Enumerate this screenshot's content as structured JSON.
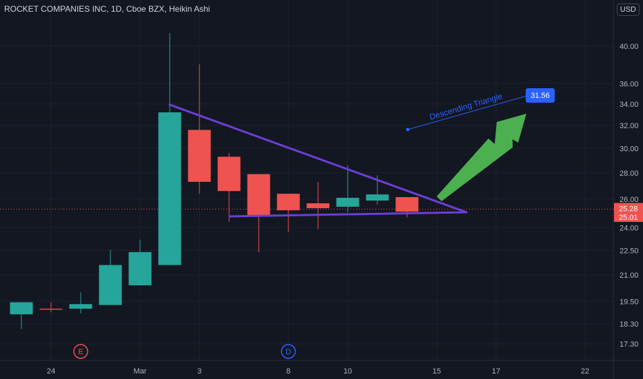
{
  "header": {
    "title": "ROCKET COMPANIES INC, 1D, Cboe BZX, Heikin Ashi",
    "currency": "USD"
  },
  "colors": {
    "background": "#131722",
    "up": "#26a69a",
    "down": "#ef5350",
    "triangle": "#6c3ed6",
    "arrow": "#4caf50",
    "annotation": "#2962ff",
    "grid": "#1e222d"
  },
  "chart_data": {
    "type": "candlestick",
    "y_ticks": [
      17.3,
      18.3,
      19.5,
      21.0,
      22.5,
      24.0,
      26.0,
      28.0,
      30.0,
      32.0,
      34.0,
      36.0,
      40.0
    ],
    "y_tick_labels": [
      "17.30",
      "18.30",
      "19.50",
      "21.00",
      "22.50",
      "24.00",
      "26.00",
      "28.00",
      "30.00",
      "32.00",
      "34.00",
      "36.00",
      "40.00"
    ],
    "x_labels": [
      "24",
      "Mar",
      "3",
      "8",
      "10",
      "15",
      "17",
      "22"
    ],
    "candles": [
      {
        "open": 18.8,
        "close": 19.45,
        "high": 19.45,
        "low": 18.05
      },
      {
        "open": 19.1,
        "close": 19.05,
        "high": 19.45,
        "low": 18.9
      },
      {
        "open": 19.1,
        "close": 19.35,
        "high": 20.0,
        "low": 18.85
      },
      {
        "open": 19.3,
        "close": 21.6,
        "high": 22.55,
        "low": 19.3
      },
      {
        "open": 20.4,
        "close": 22.4,
        "high": 23.2,
        "low": 20.4
      },
      {
        "open": 21.6,
        "close": 33.2,
        "high": 41.5,
        "low": 21.6
      },
      {
        "open": 31.6,
        "close": 27.3,
        "high": 38.0,
        "low": 26.4
      },
      {
        "open": 29.3,
        "close": 26.6,
        "high": 29.6,
        "low": 24.4
      },
      {
        "open": 27.9,
        "close": 24.75,
        "high": 27.9,
        "low": 22.4
      },
      {
        "open": 26.4,
        "close": 25.2,
        "high": 26.4,
        "low": 23.7
      },
      {
        "open": 25.7,
        "close": 25.35,
        "high": 27.3,
        "low": 23.9
      },
      {
        "open": 25.45,
        "close": 26.1,
        "high": 28.6,
        "low": 25.05
      },
      {
        "open": 25.9,
        "close": 26.35,
        "high": 27.8,
        "low": 25.6
      },
      {
        "open": 26.15,
        "close": 25.1,
        "high": 26.15,
        "low": 24.7
      }
    ],
    "price_labels": [
      {
        "text": "25.28",
        "value": 25.28
      },
      {
        "text": "25.01",
        "value": 25.01
      }
    ],
    "annotations": {
      "pattern_label": "Descending Triangle",
      "target_label": "31.56",
      "target_value": 31.56
    },
    "events": [
      {
        "letter": "E",
        "color": "#ef5350"
      },
      {
        "letter": "D",
        "color": "#2962ff"
      }
    ],
    "grid": true
  }
}
